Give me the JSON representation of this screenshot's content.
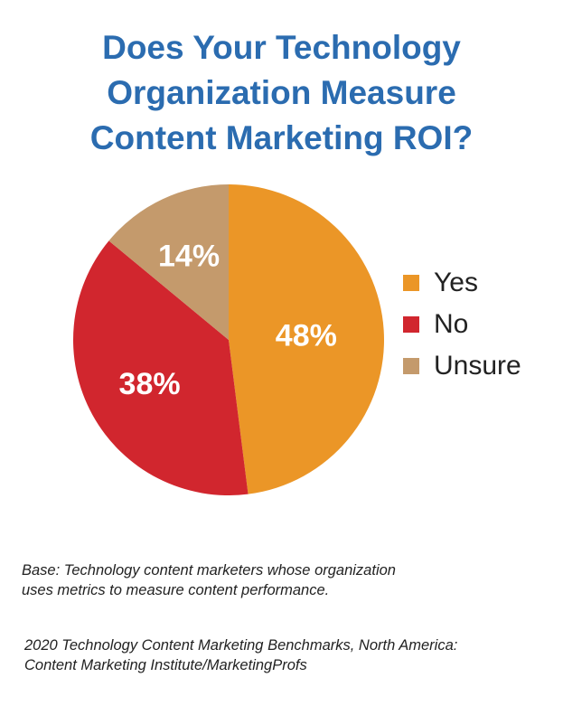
{
  "title_lines": [
    "Does Your Technology",
    "Organization Measure",
    "Content Marketing ROI?"
  ],
  "chart_data": {
    "type": "pie",
    "title": "Does Your Technology Organization Measure Content Marketing ROI?",
    "slices": [
      {
        "label": "Yes",
        "value": 48,
        "display": "48%",
        "color": "#eb9627"
      },
      {
        "label": "No",
        "value": 38,
        "display": "38%",
        "color": "#d1262e"
      },
      {
        "label": "Unsure",
        "value": 14,
        "display": "14%",
        "color": "#c49a6c"
      }
    ],
    "legend_position": "right"
  },
  "note_lines": [
    "Base: Technology content marketers whose organization",
    "uses metrics to measure content performance."
  ],
  "source_lines": [
    "2020 Technology Content Marketing Benchmarks, North America:",
    "Content Marketing Institute/MarketingProfs"
  ]
}
